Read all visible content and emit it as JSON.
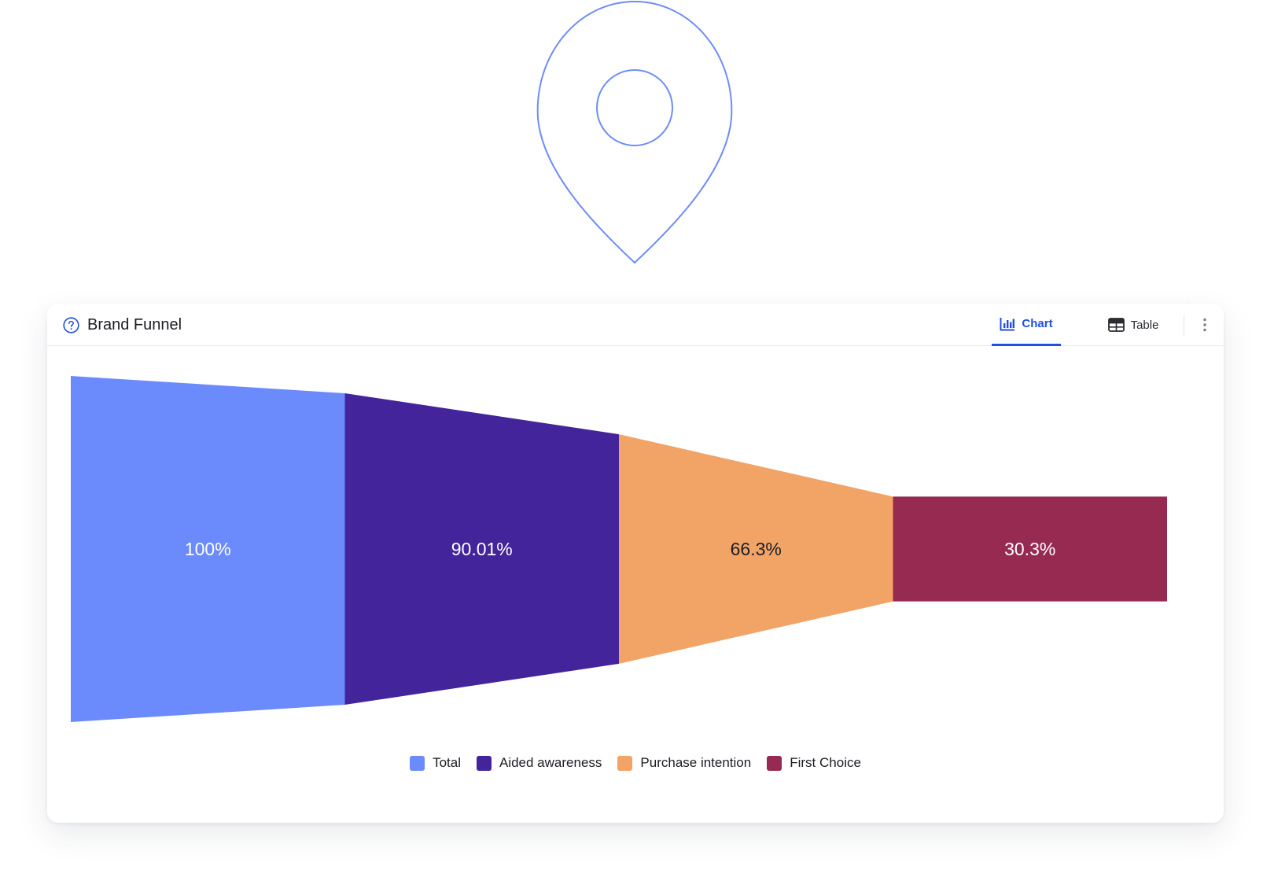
{
  "header_icon": {
    "name": "location-pin-icon",
    "color": "#6e8cf8"
  },
  "card": {
    "title": "Brand Funnel",
    "help_icon": "question-circle-icon",
    "tabs": [
      {
        "label": "Chart",
        "icon": "bar-chart-icon",
        "active": true
      },
      {
        "label": "Table",
        "icon": "table-icon",
        "active": false
      }
    ],
    "menu_icon": "vertical-dots-icon",
    "accent_color": "#1f4fe0"
  },
  "chart_data": {
    "type": "funnel",
    "categories": [
      "Total",
      "Aided awareness",
      "Purchase intention",
      "First Choice"
    ],
    "values": [
      100,
      90.01,
      66.3,
      30.3
    ],
    "labels": [
      "100%",
      "90.01%",
      "66.3%",
      "30.3%"
    ],
    "colors": [
      "#6b8bfd",
      "#43249a",
      "#f2a467",
      "#962a50"
    ],
    "label_colors": [
      "#ffffff",
      "#ffffff",
      "#1c1d24",
      "#ffffff"
    ],
    "legend_position": "bottom-center"
  }
}
